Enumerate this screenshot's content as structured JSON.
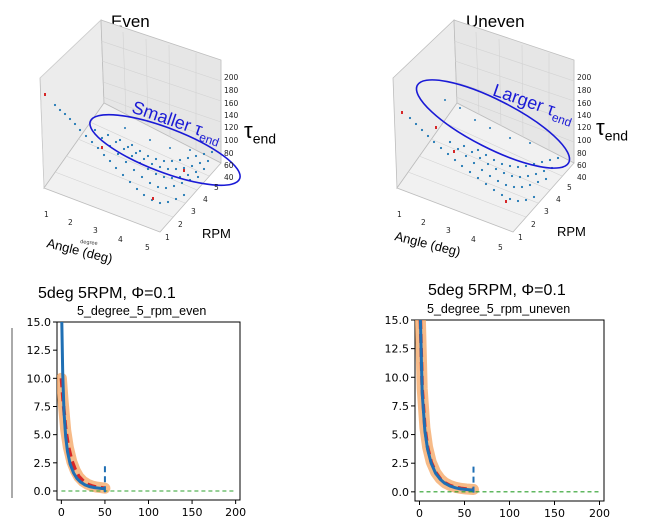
{
  "colors": {
    "pane": "#ececec",
    "gridline": "#d0d0d0",
    "points": "#1f77b4",
    "red_points": "#d62728",
    "ellipse": "#1a1ad6",
    "band": "#f4a460",
    "red_line": "#d62728",
    "blue_line": "#1f6fb4",
    "green": "#2ca02c"
  },
  "top_panels": [
    {
      "title": "Even",
      "x_label": "Angle (deg)",
      "x_label_small": "degree",
      "y_label": "RPM",
      "z_label_main": "τ",
      "z_label_sub": "end",
      "annotation_main": "Smaller τ",
      "annotation_sub": "end",
      "x_ticks": [
        "1",
        "2",
        "3",
        "4",
        "5"
      ],
      "y_ticks": [
        "1",
        "2",
        "3",
        "4",
        "5"
      ],
      "z_ticks": [
        "200",
        "180",
        "160",
        "140",
        "120",
        "100",
        "80",
        "60",
        "40"
      ]
    },
    {
      "title": "Uneven",
      "x_label": "Angle (deg)",
      "y_label": "RPM",
      "z_label_main": "τ",
      "z_label_sub": "end",
      "annotation_main": "Larger τ",
      "annotation_sub": "end",
      "x_ticks": [
        "1",
        "2",
        "3",
        "4",
        "5"
      ],
      "y_ticks": [
        "1",
        "2",
        "3",
        "4",
        "5"
      ],
      "z_ticks": [
        "200",
        "180",
        "160",
        "140",
        "120",
        "100",
        "80",
        "60",
        "40"
      ]
    }
  ],
  "chart_data": [
    {
      "type": "line",
      "heading": "5deg 5RPM, Φ=0.1",
      "title": "5_degree_5_rpm_even",
      "xlim": [
        -5,
        205
      ],
      "ylim": [
        -0.8,
        15
      ],
      "x_ticks": [
        0,
        50,
        100,
        150,
        200
      ],
      "y_ticks": [
        0.0,
        2.5,
        5.0,
        7.5,
        10.0,
        12.5,
        15.0
      ],
      "y_tick_labels": [
        "0.0",
        "2.5",
        "5.0",
        "7.5",
        "10.0",
        "12.5",
        "15.0"
      ],
      "end_marker_x": 50,
      "series": [
        {
          "name": "band",
          "x": [
            0,
            2,
            5,
            8,
            12,
            16,
            20,
            25,
            30,
            35,
            40,
            45,
            50
          ],
          "y": [
            10,
            8.0,
            5.4,
            3.9,
            2.6,
            1.8,
            1.25,
            0.85,
            0.6,
            0.45,
            0.35,
            0.3,
            0.25
          ]
        },
        {
          "name": "red",
          "x": [
            0,
            2,
            5,
            8,
            12,
            16,
            20,
            25,
            30,
            35,
            40,
            45,
            50
          ],
          "y": [
            10,
            8.0,
            5.5,
            4.0,
            2.7,
            1.9,
            1.3,
            0.9,
            0.6,
            0.45,
            0.35,
            0.3,
            0.25
          ]
        },
        {
          "name": "blue",
          "x": [
            0.5,
            1.5,
            3,
            5,
            7,
            10,
            14,
            18,
            22,
            27,
            32,
            38,
            44,
            50
          ],
          "y": [
            15,
            10.5,
            7.0,
            4.8,
            3.5,
            2.4,
            1.6,
            1.1,
            0.8,
            0.55,
            0.4,
            0.3,
            0.25,
            0.2
          ]
        },
        {
          "name": "green",
          "x": [
            0,
            200
          ],
          "y": [
            0,
            0
          ]
        }
      ]
    },
    {
      "type": "line",
      "heading": "5deg 5RPM, Φ=0.1",
      "title": "5_degree_5_rpm_uneven",
      "xlim": [
        -5,
        205
      ],
      "ylim": [
        -0.8,
        15
      ],
      "x_ticks": [
        0,
        50,
        100,
        150,
        200
      ],
      "y_ticks": [
        0.0,
        2.5,
        5.0,
        7.5,
        10.0,
        12.5,
        15.0
      ],
      "y_tick_labels": [
        "0.0",
        "2.5",
        "5.0",
        "7.5",
        "10.0",
        "12.5",
        "15.0"
      ],
      "end_marker_x": 60,
      "series": [
        {
          "name": "band",
          "x": [
            1,
            3,
            6,
            9,
            13,
            18,
            23,
            28,
            34,
            40,
            46,
            52,
            60
          ],
          "y": [
            15,
            9.0,
            5.6,
            3.9,
            2.6,
            1.7,
            1.15,
            0.8,
            0.55,
            0.4,
            0.3,
            0.25,
            0.2
          ]
        },
        {
          "name": "red",
          "x": [
            1,
            3,
            6,
            9,
            13,
            18,
            23,
            28,
            34,
            40,
            46,
            52,
            60
          ],
          "y": [
            15,
            9.0,
            5.6,
            3.9,
            2.6,
            1.7,
            1.15,
            0.8,
            0.55,
            0.4,
            0.3,
            0.25,
            0.2
          ]
        },
        {
          "name": "blue",
          "x": [
            1,
            3,
            6,
            9,
            13,
            18,
            23,
            28,
            34,
            40,
            46,
            52,
            60
          ],
          "y": [
            15,
            8.6,
            5.3,
            3.7,
            2.5,
            1.6,
            1.1,
            0.75,
            0.5,
            0.35,
            0.25,
            0.2,
            0.15
          ]
        },
        {
          "name": "green",
          "x": [
            0,
            200
          ],
          "y": [
            0,
            0
          ]
        }
      ]
    }
  ]
}
